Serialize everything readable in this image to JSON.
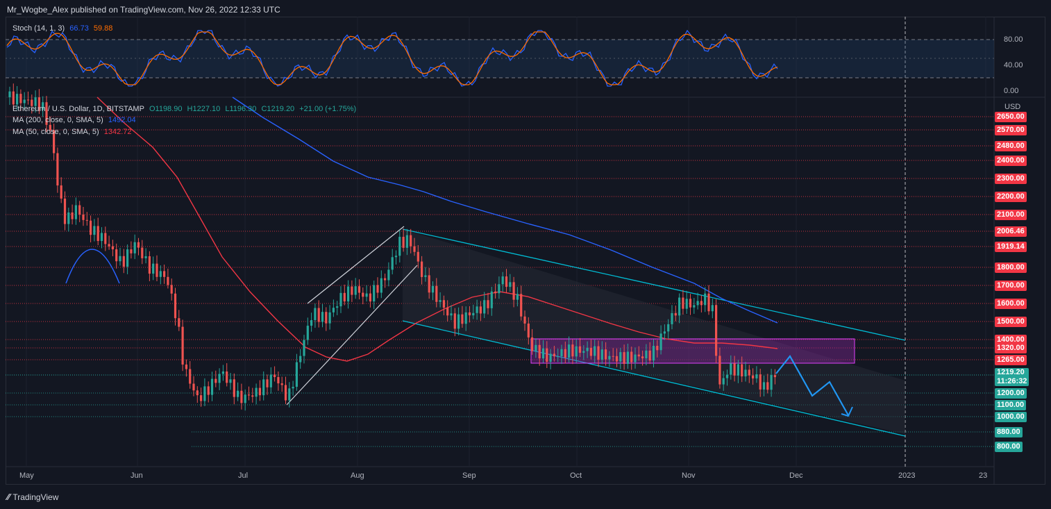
{
  "header": {
    "publisher": "Mr_Wogbe_Alex published on TradingView.com, Nov 26, 2022 12:33 UTC"
  },
  "footer": {
    "brand": "TradingView"
  },
  "stoch": {
    "label": "Stoch (14, 1, 3)",
    "k_value": "66.73",
    "d_value": "59.88",
    "k_color": "#2962ff",
    "d_color": "#ff6d00",
    "axis": [
      "80.00",
      "40.00",
      "0.00"
    ]
  },
  "legend": {
    "symbol": "Ethereum / U.S. Dollar, 1D, BITSTAMP",
    "o": "O1198.90",
    "h": "H1227.10",
    "l": "L1196.30",
    "c": "C1219.20",
    "change": "+21.00 (+1.75%)",
    "ma200_label": "MA (200, close, 0, SMA, 5)",
    "ma200_value": "1492.04",
    "ma50_label": "MA (50, close, 0, SMA, 5)",
    "ma50_value": "1342.72"
  },
  "price_axis": {
    "currency": "USD",
    "red_levels": [
      "2650.00",
      "2570.00",
      "2480.00",
      "2400.00",
      "2300.00",
      "2200.00",
      "2100.00",
      "2006.46",
      "1919.14",
      "1800.00",
      "1700.00",
      "1600.00",
      "1500.00",
      "1400.00",
      "1320.00",
      "1265.00"
    ],
    "current_price": "1219.20",
    "countdown": "11:26:32",
    "green_levels": [
      "1200.00",
      "1100.00",
      "1000.00",
      "880.00",
      "800.00"
    ]
  },
  "time_axis": [
    "May",
    "Jun",
    "Jul",
    "Aug",
    "Sep",
    "Oct",
    "Nov",
    "Dec",
    "2023",
    "23"
  ],
  "colors": {
    "up": "#26a69a",
    "down": "#ef5350",
    "ma200": "#2962ff",
    "ma50": "#f23645",
    "channel": "#00bcd4",
    "zone": "#9c27b0",
    "projection": "#2196f3"
  }
}
